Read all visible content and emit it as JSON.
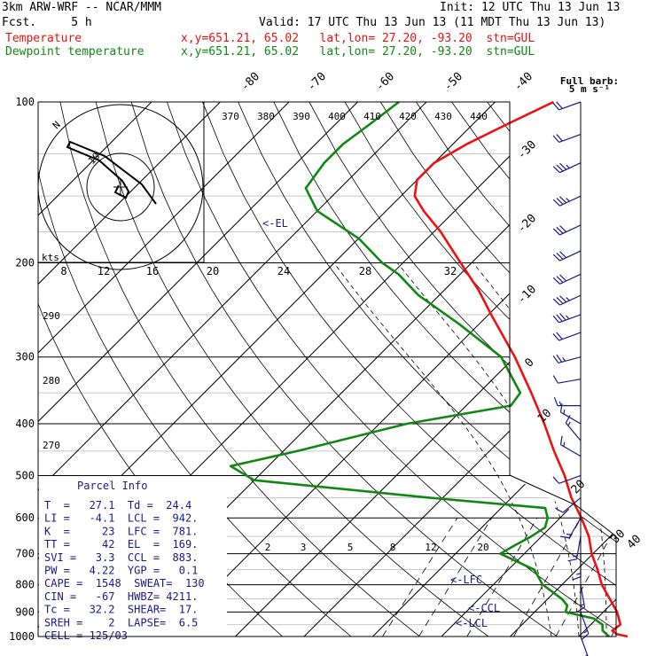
{
  "header": {
    "model": "3km ARW-WRF -- NCAR/MMM",
    "init": "Init: 12 UTC Thu 13 Jun 13",
    "fcst": "Fcst.     5 h",
    "valid": "Valid: 17 UTC Thu 13 Jun 13 (11 MDT Thu 13 Jun 13)",
    "temp_label": "Temperature",
    "temp_info": "x,y=651.21, 65.02   lat,lon= 27.20, -93.20  stn=GUL",
    "dew_label": "Dewpoint temperature",
    "dew_info": "x,y=651.21, 65.02   lat,lon= 27.20, -93.20  stn=GUL",
    "barb_title": "Full barb:",
    "barb_unit": "5 m s⁻¹"
  },
  "colors": {
    "temperature": "#ee1111",
    "dewpoint": "#118811",
    "parcel": "#1a1a8a",
    "grid": "#000000"
  },
  "parcel_info": {
    "title": "Parcel Info",
    "rows": [
      "T  =   27.1  Td =  24.4",
      "LI =   -4.1  LCL =  942.",
      "K  =     23  LFC =  781.",
      "TT =     42  EL  =  169.",
      "SVI =   3.3  CCL =  883.",
      "PW =   4.22  YGP =   0.1",
      "CAPE =  1548  SWEAT=  130",
      "CIN =   -67  HWBZ= 4211.",
      "Tc =   32.2  SHEAR=  17.",
      "SREH =    2  LAPSE=  6.5",
      "CELL = 125/03"
    ]
  },
  "hodograph": {
    "ring_label": "kts",
    "ring_values": [
      "8",
      "12",
      "16",
      "20",
      "24",
      "28",
      "32"
    ],
    "north_label": "N"
  },
  "chart_data": {
    "type": "line",
    "title": "",
    "pressure_levels": [
      100,
      200,
      300,
      400,
      500,
      600,
      700,
      800,
      900,
      1000
    ],
    "isotherm_labels": [
      "-80",
      "-70",
      "-60",
      "-50",
      "-40",
      "-30",
      "-20",
      "-10",
      "0",
      "10",
      "20",
      "30",
      "40"
    ],
    "theta_labels": [
      "370",
      "380",
      "390",
      "400",
      "410",
      "420",
      "430",
      "440"
    ],
    "theta_left_labels": [
      "290",
      "280",
      "270"
    ],
    "mixing_ratio_labels": [
      "2",
      "3",
      "5",
      "8",
      "12",
      "20"
    ],
    "level_markers": [
      "<-EL",
      "<-LFC",
      "<-CCL",
      "<-LCL"
    ],
    "series": [
      {
        "name": "Temperature",
        "color": "#ee1111",
        "values": [
          [
            1000,
            27.1
          ],
          [
            990,
            25.2
          ],
          [
            975,
            24.0
          ],
          [
            950,
            24.3
          ],
          [
            930,
            23.4
          ],
          [
            900,
            22.0
          ],
          [
            850,
            19.0
          ],
          [
            800,
            15.8
          ],
          [
            750,
            13.0
          ],
          [
            700,
            9.8
          ],
          [
            650,
            6.9
          ],
          [
            600,
            3.1
          ],
          [
            550,
            -1.3
          ],
          [
            500,
            -5.5
          ],
          [
            450,
            -10.6
          ],
          [
            400,
            -16.0
          ],
          [
            350,
            -22.4
          ],
          [
            300,
            -30.0
          ],
          [
            250,
            -39.6
          ],
          [
            225,
            -45.0
          ],
          [
            200,
            -51.6
          ],
          [
            175,
            -59.0
          ],
          [
            160,
            -64.5
          ],
          [
            150,
            -68.0
          ],
          [
            140,
            -70.0
          ],
          [
            130,
            -70.0
          ],
          [
            120,
            -68.0
          ],
          [
            110,
            -65.0
          ],
          [
            100,
            -61.5
          ]
        ]
      },
      {
        "name": "Dewpoint temperature",
        "color": "#118811",
        "values": [
          [
            1000,
            24.4
          ],
          [
            975,
            22.6
          ],
          [
            950,
            21.7
          ],
          [
            925,
            19.5
          ],
          [
            900,
            14.5
          ],
          [
            875,
            13.8
          ],
          [
            850,
            12.0
          ],
          [
            800,
            7.2
          ],
          [
            750,
            3.8
          ],
          [
            700,
            -3.5
          ],
          [
            675,
            -2.6
          ],
          [
            650,
            -1.5
          ],
          [
            625,
            -0.8
          ],
          [
            600,
            -1.8
          ],
          [
            575,
            -3.6
          ],
          [
            550,
            -22.0
          ],
          [
            510,
            -50.0
          ],
          [
            480,
            -55.5
          ],
          [
            450,
            -48.0
          ],
          [
            400,
            -36.0
          ],
          [
            370,
            -23.5
          ],
          [
            350,
            -24.0
          ],
          [
            300,
            -32.0
          ],
          [
            260,
            -43.0
          ],
          [
            230,
            -53.0
          ],
          [
            210,
            -59.0
          ],
          [
            200,
            -63.0
          ],
          [
            180,
            -70.0
          ],
          [
            160,
            -80.0
          ],
          [
            145,
            -85.0
          ],
          [
            130,
            -86.0
          ],
          [
            120,
            -86.0
          ],
          [
            110,
            -85.0
          ],
          [
            100,
            -84.0
          ]
        ]
      }
    ],
    "wind_barbs_kts": [
      [
        100,
        250,
        20
      ],
      [
        115,
        250,
        22
      ],
      [
        130,
        245,
        25
      ],
      [
        150,
        245,
        28
      ],
      [
        170,
        245,
        30
      ],
      [
        190,
        245,
        30
      ],
      [
        210,
        245,
        30
      ],
      [
        230,
        245,
        28
      ],
      [
        250,
        250,
        25
      ],
      [
        270,
        250,
        20
      ],
      [
        300,
        255,
        15
      ],
      [
        330,
        260,
        10
      ],
      [
        370,
        270,
        5
      ],
      [
        400,
        300,
        5
      ],
      [
        430,
        320,
        5
      ],
      [
        460,
        300,
        8
      ],
      [
        500,
        250,
        10
      ],
      [
        550,
        230,
        10
      ],
      [
        600,
        210,
        8
      ],
      [
        650,
        190,
        5
      ],
      [
        700,
        180,
        5
      ],
      [
        800,
        170,
        5
      ],
      [
        900,
        160,
        5
      ],
      [
        1000,
        160,
        5
      ]
    ]
  }
}
